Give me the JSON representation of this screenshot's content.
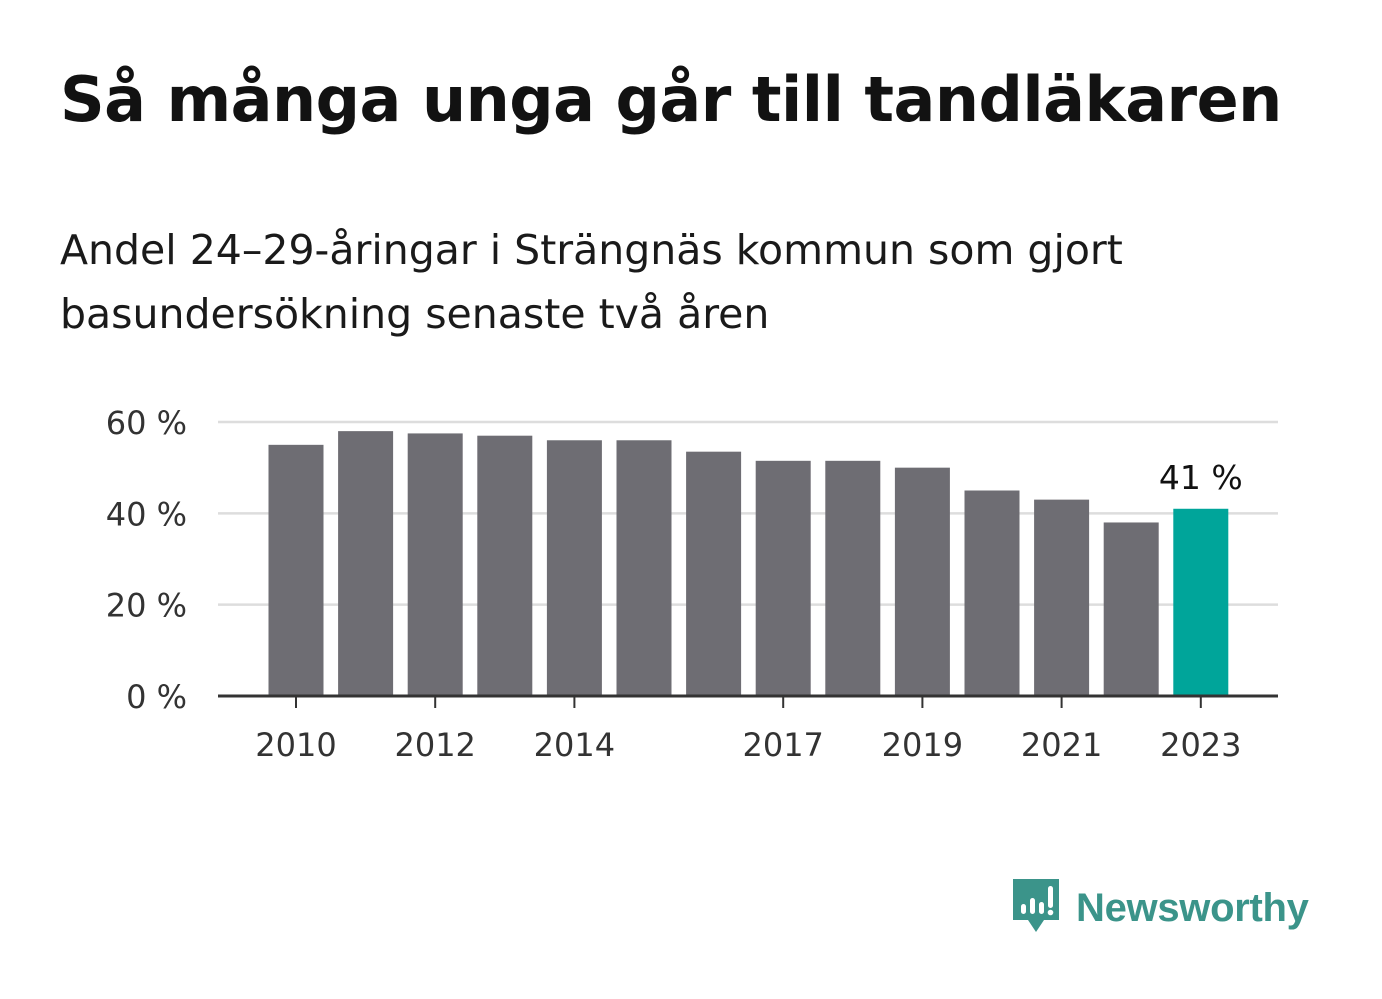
{
  "title": "Så många unga går till tandläkaren",
  "subtitle": "Andel 24–29-åringar i Strängnäs kommun som gjort basundersökning senaste två åren",
  "brand": {
    "name": "Newsworthy",
    "icon": "newsworthy-logo-icon",
    "color": "#3b948a"
  },
  "chart_data": {
    "type": "bar",
    "categories": [
      "2010",
      "2011",
      "2012",
      "2013",
      "2014",
      "2015",
      "2016",
      "2017",
      "2018",
      "2019",
      "2020",
      "2021",
      "2022",
      "2023"
    ],
    "values": [
      55,
      58,
      57.5,
      57,
      56,
      56,
      53.5,
      51.5,
      51.5,
      50,
      45,
      43,
      38,
      41
    ],
    "ylim": [
      0,
      60
    ],
    "y_ticks": [
      0,
      20,
      40,
      60
    ],
    "y_tick_labels": [
      "0 %",
      "20 %",
      "40 %",
      "60 %"
    ],
    "x_tick_labels": [
      "2010",
      "2012",
      "2014",
      "2017",
      "2019",
      "2021",
      "2023"
    ],
    "grid": true,
    "bar_color": "#6e6d73",
    "highlight_color": "#00a59a",
    "highlight_category": "2023",
    "annotation": {
      "category": "2023",
      "text": "41 %"
    }
  }
}
